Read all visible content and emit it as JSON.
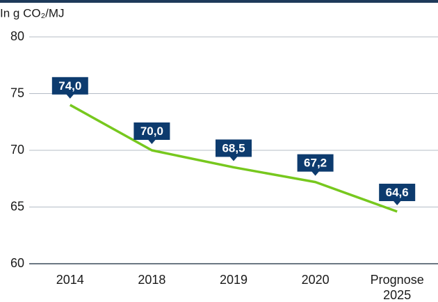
{
  "chart_data": {
    "type": "line",
    "y_axis_label": "In g CO₂/MJ",
    "categories": [
      "2014",
      "2018",
      "2019",
      "2020",
      "Prognose 2025"
    ],
    "series": [
      {
        "color": "#77c81e",
        "values": [
          74.0,
          70.0,
          68.5,
          67.2,
          64.6
        ],
        "value_labels": [
          "74,0",
          "70,0",
          "68,5",
          "67,2",
          "64,6"
        ]
      }
    ],
    "label_color": "#0d3b6e",
    "ylim": [
      60,
      80
    ],
    "yticks": [
      60,
      65,
      70,
      75,
      80
    ],
    "grid": true
  }
}
